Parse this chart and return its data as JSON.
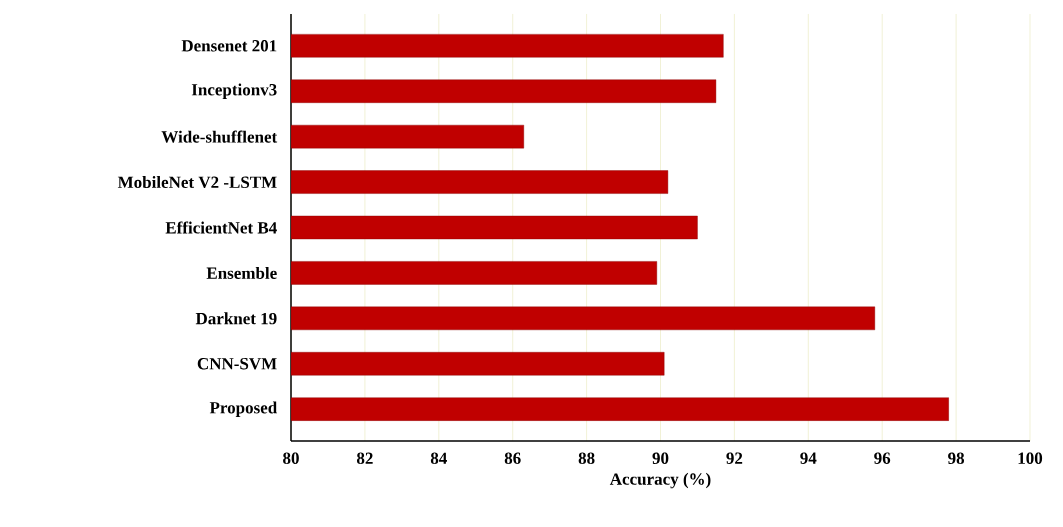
{
  "chart_data": {
    "type": "bar",
    "orientation": "horizontal",
    "xlabel": "Accuracy (%)",
    "categories": [
      "Densenet 201",
      "Inceptionv3",
      "Wide-shufflenet",
      "MobileNet V2 -LSTM",
      "EfficientNet  B4",
      "Ensemble",
      "Darknet 19",
      "CNN-SVM",
      "Proposed"
    ],
    "values": [
      91.7,
      91.5,
      86.3,
      90.2,
      91.0,
      89.9,
      95.8,
      90.1,
      97.8
    ],
    "color": "#c00000",
    "xlim": [
      80,
      100
    ],
    "xticks": [
      80,
      82,
      84,
      86,
      88,
      90,
      92,
      94,
      96,
      98,
      100
    ],
    "grid": "x"
  }
}
